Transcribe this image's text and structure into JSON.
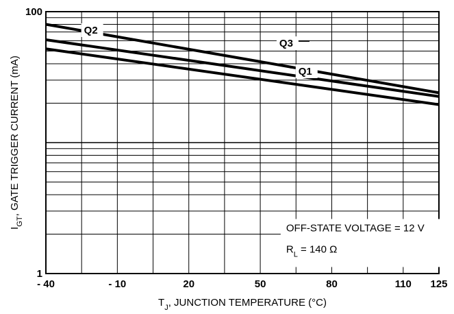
{
  "chart_data": {
    "type": "line",
    "title": "",
    "xlabel": {
      "main": "T",
      "sub": "J",
      "rest": ", JUNCTION TEMPERATURE (°C)"
    },
    "ylabel": {
      "main": "I",
      "sub": "GT",
      "rest": ", GATE TRIGGER CURRENT (mA)"
    },
    "xlim": [
      -40,
      125
    ],
    "ylim": [
      1,
      100
    ],
    "yscale": "log",
    "xticks": [
      -40,
      -10,
      20,
      50,
      80,
      110,
      125
    ],
    "xtick_labels": [
      "- 40",
      "- 10",
      "20",
      "50",
      "80",
      "110",
      "125"
    ],
    "ytick_labels": [
      {
        "value": 1,
        "label": "1"
      },
      {
        "value": 100,
        "label": "100"
      }
    ],
    "grid": true,
    "series": [
      {
        "name": "Q3",
        "x": [
          -40,
          125
        ],
        "y": [
          80,
          24
        ]
      },
      {
        "name": "Q2",
        "x": [
          -40,
          125
        ],
        "y": [
          61,
          22.5
        ]
      },
      {
        "name": "Q1",
        "x": [
          -40,
          125
        ],
        "y": [
          52,
          19.5
        ]
      }
    ],
    "annotations": [
      {
        "text": "OFF-STATE VOLTAGE = 12 V"
      },
      {
        "main": "R",
        "sub": "L",
        "rest": " = 140 Ω"
      }
    ]
  },
  "colors": {
    "background": "#ffffff",
    "line": "#000000",
    "grid": "#000000"
  }
}
